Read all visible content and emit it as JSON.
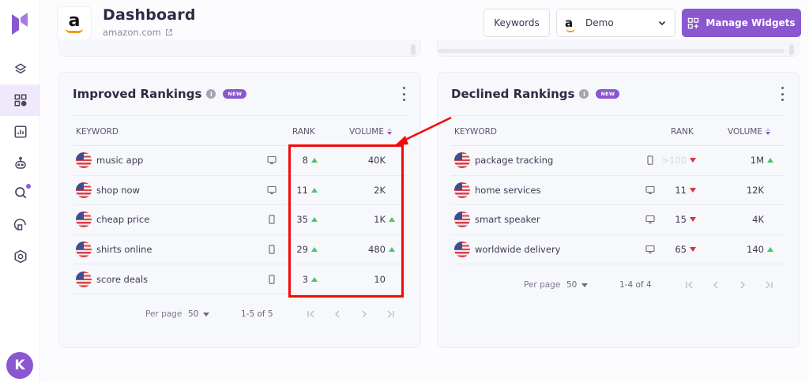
{
  "sidebar": {
    "items": [
      {
        "name": "layers",
        "icon": "layers-icon"
      },
      {
        "name": "dashboard",
        "icon": "widgets-icon",
        "active": true
      },
      {
        "name": "reports",
        "icon": "chart-icon"
      },
      {
        "name": "ai-assistant",
        "icon": "robot-icon"
      },
      {
        "name": "keyword-research",
        "icon": "search-icon",
        "notification": true
      },
      {
        "name": "site-audit",
        "icon": "audit-icon"
      },
      {
        "name": "settings",
        "icon": "settings-icon"
      }
    ],
    "user_initial": "K"
  },
  "header": {
    "title": "Dashboard",
    "site": "amazon.com",
    "brand_letter": "a",
    "keywords_label": "Keywords",
    "project_select": {
      "letter": "a",
      "value": "Demo"
    },
    "manage_widgets_label": "Manage Widgets"
  },
  "colors": {
    "accent": "#8a57cf",
    "up": "#4cc46a",
    "down": "#d8333f",
    "annotation": "#f20a0a"
  },
  "widgets": {
    "improved": {
      "title": "Improved Rankings",
      "badge": "NEW",
      "columns": {
        "keyword": "KEYWORD",
        "rank": "RANK",
        "volume": "VOLUME"
      },
      "rows": [
        {
          "keyword": "music app",
          "device": "desktop",
          "rank": "8",
          "rank_trend": "up",
          "volume": "40K",
          "volume_trend": ""
        },
        {
          "keyword": "shop now",
          "device": "desktop",
          "rank": "11",
          "rank_trend": "up",
          "volume": "2K",
          "volume_trend": ""
        },
        {
          "keyword": "cheap price",
          "device": "mobile",
          "rank": "35",
          "rank_trend": "up",
          "volume": "1K",
          "volume_trend": "up"
        },
        {
          "keyword": "shirts online",
          "device": "mobile",
          "rank": "29",
          "rank_trend": "up",
          "volume": "480",
          "volume_trend": "up"
        },
        {
          "keyword": "score deals",
          "device": "mobile",
          "rank": "3",
          "rank_trend": "up",
          "volume": "10",
          "volume_trend": ""
        }
      ],
      "pager": {
        "per_page_label": "Per page",
        "per_page": "50",
        "range": "1-5 of 5"
      }
    },
    "declined": {
      "title": "Declined Rankings",
      "badge": "NEW",
      "columns": {
        "keyword": "KEYWORD",
        "rank": "RANK",
        "volume": "VOLUME"
      },
      "rows": [
        {
          "keyword": "package tracking",
          "device": "mobile",
          "rank": ">100",
          "rank_trend": "down",
          "rank_muted": true,
          "volume": "1M",
          "volume_trend": "up"
        },
        {
          "keyword": "home services",
          "device": "desktop",
          "rank": "11",
          "rank_trend": "down",
          "volume": "12K",
          "volume_trend": ""
        },
        {
          "keyword": "smart speaker",
          "device": "desktop",
          "rank": "15",
          "rank_trend": "down",
          "volume": "4K",
          "volume_trend": ""
        },
        {
          "keyword": "worldwide delivery",
          "device": "desktop",
          "rank": "65",
          "rank_trend": "down",
          "volume": "140",
          "volume_trend": "up"
        }
      ],
      "pager": {
        "per_page_label": "Per page",
        "per_page": "50",
        "range": "1-4 of 4"
      }
    }
  }
}
